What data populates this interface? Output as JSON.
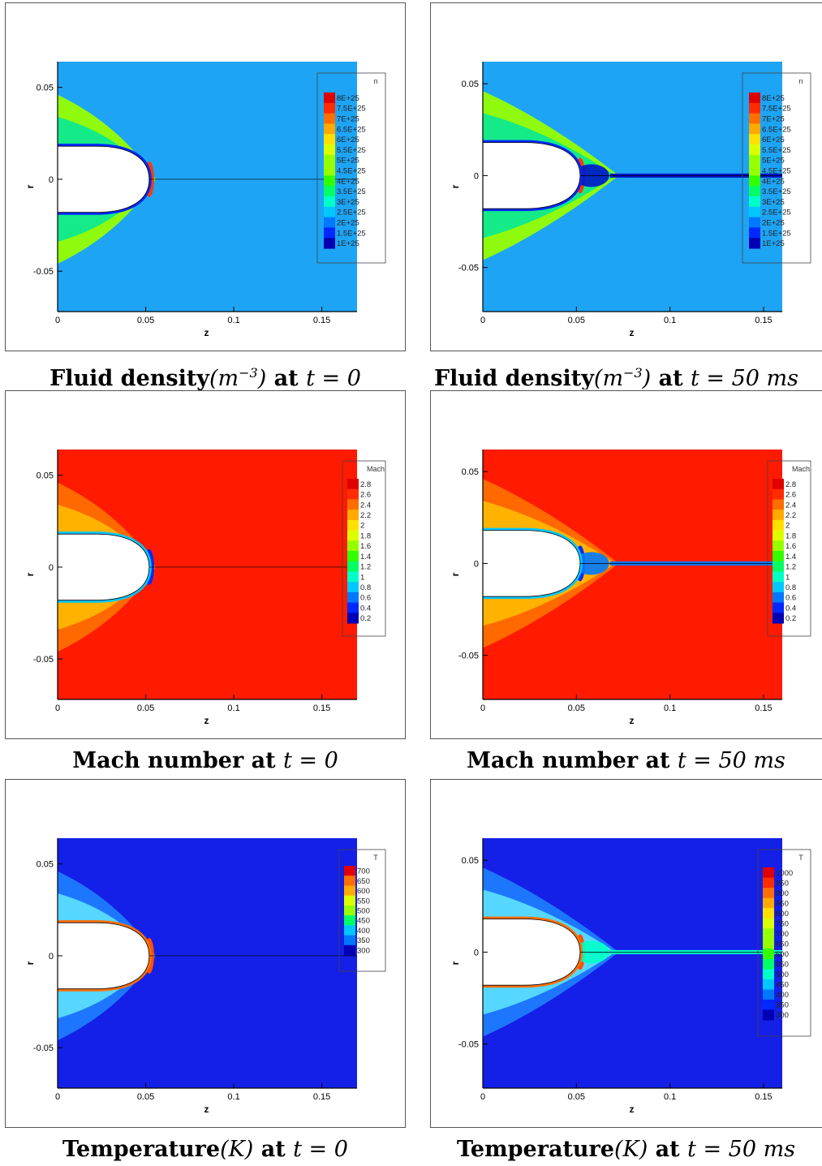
{
  "colors": {
    "jet": [
      "#0000b4",
      "#0028ff",
      "#0078ff",
      "#00c8ff",
      "#00ffc8",
      "#00ff64",
      "#32ff00",
      "#96ff00",
      "#dcff00",
      "#ffe000",
      "#ffaa00",
      "#ff6e00",
      "#ff2c00",
      "#e00000"
    ],
    "freestream_density": "#1ea4f4",
    "freestream_mach": "#ff1a00",
    "freestream_temperature": "#1420e8"
  },
  "panels": [
    {
      "id": "density-t0",
      "caption": {
        "bold": "Fluid density",
        "unit": "(m",
        "exp": "−3",
        "close": ")",
        "at": " at ",
        "time": "t = 0"
      },
      "chart_data": {
        "type": "heatmap",
        "xlabel": "z",
        "ylabel": "r",
        "xticks": [
          "0",
          "0.05",
          "0.1",
          "0.15"
        ],
        "xtick_values": [
          0,
          0.05,
          0.1,
          0.15
        ],
        "yticks": [
          "0.05",
          "0",
          "-0.05"
        ],
        "ytick_values": [
          0.05,
          0,
          -0.05
        ],
        "xlim": [
          0,
          0.17
        ],
        "ylim": [
          -0.072,
          0.064
        ],
        "legend": {
          "title": "n",
          "placement": "right",
          "labels": [
            "8E+25",
            "7.5E+25",
            "7E+25",
            "6.5E+25",
            "6E+25",
            "5.5E+25",
            "5E+25",
            "4.5E+25",
            "4E+25",
            "3.5E+25",
            "3E+25",
            "2.5E+25",
            "2E+25",
            "1.5E+25",
            "1E+25"
          ]
        },
        "time_ms": 0
      }
    },
    {
      "id": "density-t50",
      "caption": {
        "bold": "Fluid density",
        "unit": "(m",
        "exp": "−3",
        "close": ")",
        "at": " at ",
        "time": "t = 50 ms"
      },
      "chart_data": {
        "type": "heatmap",
        "xlabel": "z",
        "ylabel": "r",
        "xticks": [
          "0",
          "0.05",
          "0.1",
          "0.15"
        ],
        "xtick_values": [
          0,
          0.05,
          0.1,
          0.15
        ],
        "yticks": [
          "0.05",
          "0",
          "-0.05"
        ],
        "ytick_values": [
          0.05,
          0,
          -0.05
        ],
        "xlim": [
          0,
          0.16
        ],
        "ylim": [
          -0.074,
          0.062
        ],
        "legend": {
          "title": "n",
          "placement": "right",
          "labels": [
            "8E+25",
            "7.5E+25",
            "7E+25",
            "6.5E+25",
            "6E+25",
            "5.5E+25",
            "5E+25",
            "4.5E+25",
            "4E+25",
            "3.5E+25",
            "3E+25",
            "2.5E+25",
            "2E+25",
            "1.5E+25",
            "1E+25"
          ]
        },
        "time_ms": 50
      }
    },
    {
      "id": "mach-t0",
      "caption": {
        "bold": "Mach number",
        "at": " at ",
        "time": "t = 0"
      },
      "chart_data": {
        "type": "heatmap",
        "xlabel": "z",
        "ylabel": "r",
        "xticks": [
          "0",
          "0.05",
          "0.1",
          "0.15"
        ],
        "xtick_values": [
          0,
          0.05,
          0.1,
          0.15
        ],
        "yticks": [
          "0.05",
          "0",
          "-0.05"
        ],
        "ytick_values": [
          0.05,
          0,
          -0.05
        ],
        "xlim": [
          0,
          0.17
        ],
        "ylim": [
          -0.072,
          0.064
        ],
        "legend": {
          "title": "Mach",
          "placement": "right",
          "labels": [
            "2.8",
            "2.6",
            "2.4",
            "2.2",
            "2",
            "1.8",
            "1.6",
            "1.4",
            "1.2",
            "1",
            "0.8",
            "0.6",
            "0.4",
            "0.2"
          ]
        },
        "time_ms": 0
      }
    },
    {
      "id": "mach-t50",
      "caption": {
        "bold": "Mach number",
        "at": " at ",
        "time": "t = 50 ms"
      },
      "chart_data": {
        "type": "heatmap",
        "xlabel": "z",
        "ylabel": "r",
        "xticks": [
          "0",
          "0.05",
          "0.1",
          "0.15"
        ],
        "xtick_values": [
          0,
          0.05,
          0.1,
          0.15
        ],
        "yticks": [
          "0.05",
          "0",
          "-0.05"
        ],
        "ytick_values": [
          0.05,
          0,
          -0.05
        ],
        "xlim": [
          0,
          0.16
        ],
        "ylim": [
          -0.074,
          0.062
        ],
        "legend": {
          "title": "Mach",
          "placement": "right",
          "labels": [
            "2.8",
            "2.6",
            "2.4",
            "2.2",
            "2",
            "1.8",
            "1.6",
            "1.4",
            "1.2",
            "1",
            "0.8",
            "0.6",
            "0.4",
            "0.2"
          ]
        },
        "time_ms": 50
      }
    },
    {
      "id": "temperature-t0",
      "caption": {
        "bold": "Temperature",
        "unit": "(K",
        "close": ")",
        "at": " at ",
        "time": "t = 0"
      },
      "chart_data": {
        "type": "heatmap",
        "xlabel": "z",
        "ylabel": "r",
        "xticks": [
          "0",
          "0.05",
          "0.1",
          "0.15"
        ],
        "xtick_values": [
          0,
          0.05,
          0.1,
          0.15
        ],
        "yticks": [
          "0.05",
          "0",
          "-0.05"
        ],
        "ytick_values": [
          0.05,
          0,
          -0.05
        ],
        "xlim": [
          0,
          0.17
        ],
        "ylim": [
          -0.072,
          0.064
        ],
        "legend": {
          "title": "T",
          "placement": "right",
          "labels": [
            "700",
            "650",
            "600",
            "550",
            "500",
            "450",
            "400",
            "350",
            "300"
          ]
        },
        "time_ms": 0
      }
    },
    {
      "id": "temperature-t50",
      "caption": {
        "bold": "Temperature",
        "unit": "(K",
        "close": ")",
        "at": " at ",
        "time": "t = 50 ms"
      },
      "chart_data": {
        "type": "heatmap",
        "xlabel": "z",
        "ylabel": "r",
        "xticks": [
          "0",
          "0.05",
          "0.1",
          "0.15"
        ],
        "xtick_values": [
          0,
          0.05,
          0.1,
          0.15
        ],
        "yticks": [
          "0.05",
          "0",
          "-0.05"
        ],
        "ytick_values": [
          0.05,
          0,
          -0.05
        ],
        "xlim": [
          0,
          0.16
        ],
        "ylim": [
          -0.074,
          0.062
        ],
        "legend": {
          "title": "T",
          "placement": "right",
          "labels": [
            "1000",
            "950",
            "900",
            "850",
            "800",
            "750",
            "700",
            "650",
            "600",
            "550",
            "500",
            "450",
            "400",
            "350",
            "300"
          ]
        },
        "time_ms": 50
      }
    }
  ]
}
